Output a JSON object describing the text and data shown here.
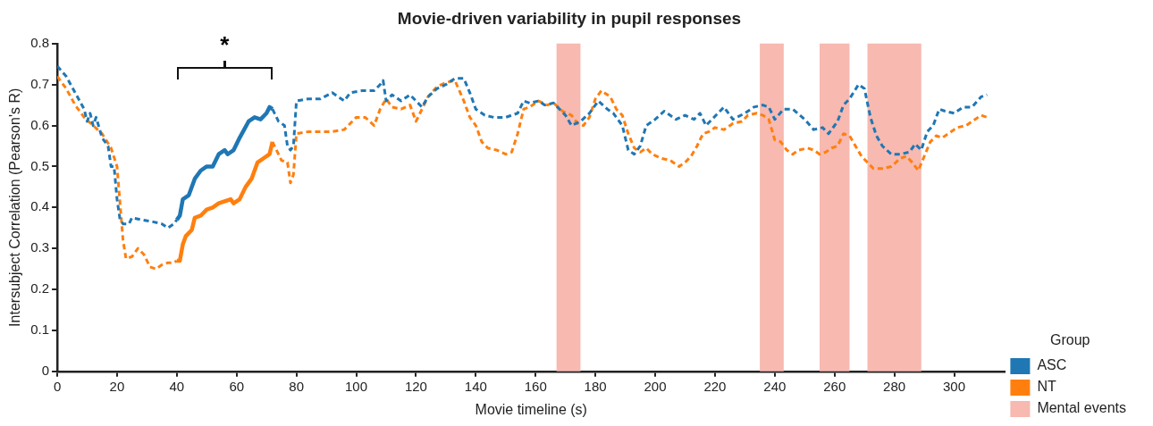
{
  "chart_data": {
    "type": "line",
    "title": "Movie-driven variability in pupil responses",
    "xlabel": "Movie timeline (s)",
    "ylabel": "Intersubject Correlation (Pearson's R)",
    "legend_title": "Group",
    "legend": "bottom right",
    "grid": false,
    "marker": "none",
    "xlim": [
      0,
      317
    ],
    "xticks": [
      0,
      20,
      40,
      60,
      80,
      100,
      120,
      140,
      160,
      180,
      200,
      220,
      240,
      260,
      280,
      300
    ],
    "ylim": [
      0,
      0.8
    ],
    "yticks": [
      0,
      0.1,
      0.2,
      0.3,
      0.4,
      0.5,
      0.6,
      0.7,
      0.8
    ],
    "annotations": [
      "*"
    ],
    "bands": [
      {
        "axis": "x",
        "from": 167,
        "to": 175,
        "label": "Mental events",
        "color": "#f7b9b0"
      },
      {
        "axis": "x",
        "from": 235,
        "to": 243,
        "color": "#f7b9b0"
      },
      {
        "axis": "x",
        "from": 255,
        "to": 265,
        "color": "#f7b9b0"
      },
      {
        "axis": "x",
        "from": 271,
        "to": 289,
        "color": "#f7b9b0"
      }
    ],
    "series": [
      {
        "name": "ASC",
        "color": "#1f77b4",
        "line_style": "dashed",
        "x": [
          0,
          3,
          6,
          9,
          10,
          11,
          12,
          13,
          15,
          17,
          18,
          19,
          20,
          21,
          22,
          24,
          25,
          28,
          32,
          35,
          37,
          39,
          40
        ],
        "values": [
          0.745,
          0.72,
          0.68,
          0.64,
          0.61,
          0.63,
          0.6,
          0.62,
          0.57,
          0.55,
          0.5,
          0.5,
          0.42,
          0.37,
          0.36,
          0.36,
          0.375,
          0.37,
          0.365,
          0.36,
          0.35,
          0.36,
          0.37
        ]
      },
      {
        "name": "NT",
        "color": "#ff7f0e",
        "line_style": "dashed",
        "x": [
          0,
          3,
          6,
          9,
          12,
          15,
          18,
          20,
          21,
          22,
          23,
          25,
          27,
          29,
          31,
          33,
          35,
          37,
          39,
          40
        ],
        "values": [
          0.72,
          0.69,
          0.65,
          0.62,
          0.6,
          0.58,
          0.545,
          0.5,
          0.41,
          0.32,
          0.275,
          0.28,
          0.3,
          0.285,
          0.255,
          0.25,
          0.26,
          0.265,
          0.265,
          0.27
        ]
      },
      {
        "color": "#1f77b4",
        "line_style": "dashed",
        "x": [
          72,
          74,
          76,
          77,
          78,
          79,
          80,
          84,
          88,
          92,
          96,
          98,
          102,
          106,
          108,
          109,
          110,
          112,
          115,
          118,
          120,
          122,
          124,
          127,
          130,
          133,
          136,
          138,
          140,
          143,
          146,
          150,
          154,
          156,
          158,
          161,
          163,
          166,
          170,
          172,
          175,
          178,
          181,
          184,
          186,
          189,
          191,
          193,
          195,
          197,
          200,
          203,
          207,
          210,
          213,
          215,
          217,
          219,
          221,
          223,
          226,
          230,
          233,
          236,
          238,
          240,
          243,
          246,
          250,
          253,
          256,
          258,
          261,
          263,
          265,
          268,
          270,
          272,
          274,
          276,
          279,
          282,
          285,
          287,
          289,
          291,
          293,
          295,
          297,
          300,
          303,
          306,
          309,
          311
        ],
        "values": [
          0.64,
          0.61,
          0.6,
          0.55,
          0.54,
          0.55,
          0.66,
          0.665,
          0.665,
          0.68,
          0.66,
          0.68,
          0.685,
          0.685,
          0.7,
          0.71,
          0.66,
          0.675,
          0.66,
          0.675,
          0.66,
          0.645,
          0.67,
          0.69,
          0.7,
          0.715,
          0.715,
          0.68,
          0.64,
          0.625,
          0.62,
          0.62,
          0.63,
          0.66,
          0.655,
          0.66,
          0.65,
          0.655,
          0.625,
          0.6,
          0.61,
          0.63,
          0.66,
          0.64,
          0.63,
          0.6,
          0.54,
          0.53,
          0.55,
          0.6,
          0.615,
          0.635,
          0.615,
          0.625,
          0.615,
          0.63,
          0.6,
          0.615,
          0.63,
          0.645,
          0.615,
          0.63,
          0.645,
          0.65,
          0.645,
          0.615,
          0.64,
          0.64,
          0.615,
          0.59,
          0.595,
          0.58,
          0.61,
          0.65,
          0.665,
          0.7,
          0.69,
          0.62,
          0.575,
          0.55,
          0.53,
          0.53,
          0.535,
          0.555,
          0.54,
          0.585,
          0.6,
          0.64,
          0.635,
          0.63,
          0.645,
          0.645,
          0.67,
          0.675
        ]
      },
      {
        "color": "#ff7f0e",
        "line_style": "dashed",
        "x": [
          72,
          74,
          75,
          77,
          78,
          79,
          80,
          84,
          88,
          92,
          96,
          98,
          100,
          103,
          106,
          108,
          110,
          112,
          115,
          118,
          120,
          122,
          124,
          127,
          130,
          133,
          136,
          138,
          140,
          142,
          144,
          147,
          150,
          152,
          154,
          156,
          158,
          161,
          164,
          166,
          169,
          172,
          174,
          176,
          178,
          180,
          182,
          185,
          187,
          189,
          191,
          193,
          195,
          197,
          199,
          202,
          205,
          208,
          210,
          212,
          214,
          216,
          218,
          220,
          223,
          226,
          229,
          231,
          234,
          236,
          238,
          240,
          242,
          244,
          246,
          248,
          251,
          253,
          255,
          257,
          259,
          261,
          263,
          265,
          267,
          269,
          271,
          273,
          276,
          279,
          282,
          284,
          286,
          288,
          290,
          292,
          294,
          296,
          298,
          301,
          304,
          307,
          309,
          311
        ],
        "values": [
          0.56,
          0.53,
          0.515,
          0.51,
          0.46,
          0.48,
          0.58,
          0.585,
          0.585,
          0.585,
          0.59,
          0.605,
          0.62,
          0.62,
          0.6,
          0.64,
          0.665,
          0.645,
          0.64,
          0.65,
          0.61,
          0.64,
          0.67,
          0.695,
          0.705,
          0.71,
          0.66,
          0.62,
          0.6,
          0.56,
          0.545,
          0.54,
          0.53,
          0.535,
          0.58,
          0.64,
          0.645,
          0.66,
          0.65,
          0.655,
          0.635,
          0.625,
          0.605,
          0.6,
          0.62,
          0.665,
          0.685,
          0.67,
          0.64,
          0.625,
          0.58,
          0.545,
          0.535,
          0.545,
          0.53,
          0.52,
          0.515,
          0.5,
          0.51,
          0.525,
          0.55,
          0.58,
          0.585,
          0.595,
          0.59,
          0.605,
          0.61,
          0.625,
          0.63,
          0.625,
          0.615,
          0.565,
          0.56,
          0.54,
          0.53,
          0.54,
          0.545,
          0.54,
          0.53,
          0.535,
          0.545,
          0.55,
          0.58,
          0.575,
          0.55,
          0.525,
          0.51,
          0.495,
          0.495,
          0.5,
          0.52,
          0.525,
          0.51,
          0.49,
          0.525,
          0.56,
          0.575,
          0.57,
          0.58,
          0.595,
          0.6,
          0.615,
          0.625,
          0.62
        ]
      },
      {
        "color": "#1f77b4",
        "line_style": "solid",
        "x": [
          40,
          41,
          42,
          44,
          46,
          48,
          50,
          52,
          54,
          56,
          57,
          59,
          61,
          64,
          66,
          68,
          70,
          71,
          72
        ],
        "values": [
          0.37,
          0.38,
          0.42,
          0.43,
          0.47,
          0.49,
          0.5,
          0.5,
          0.53,
          0.54,
          0.53,
          0.54,
          0.57,
          0.61,
          0.62,
          0.615,
          0.63,
          0.645,
          0.64
        ]
      },
      {
        "color": "#ff7f0e",
        "line_style": "solid",
        "x": [
          40,
          41,
          42,
          43,
          45,
          46,
          48,
          50,
          52,
          54,
          56,
          58,
          59,
          61,
          63,
          65,
          67,
          69,
          71,
          72
        ],
        "values": [
          0.27,
          0.27,
          0.31,
          0.33,
          0.345,
          0.375,
          0.38,
          0.395,
          0.4,
          0.41,
          0.415,
          0.42,
          0.41,
          0.42,
          0.45,
          0.47,
          0.51,
          0.52,
          0.53,
          0.56
        ]
      }
    ]
  }
}
